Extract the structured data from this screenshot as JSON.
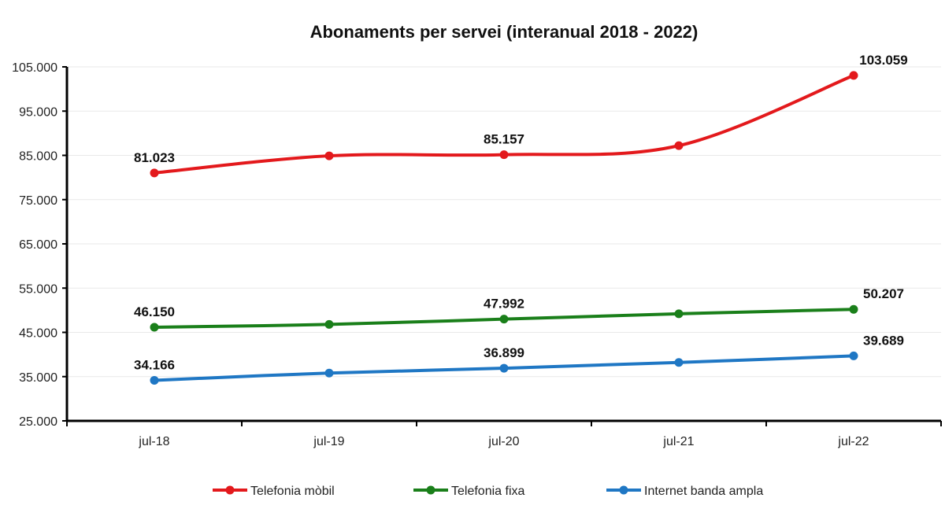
{
  "chart_data": {
    "type": "line",
    "title": "Abonaments per servei (interanual 2018 - 2022)",
    "xlabel": "",
    "ylabel": "",
    "categories": [
      "jul-18",
      "jul-19",
      "jul-20",
      "jul-21",
      "jul-22"
    ],
    "ylim": [
      25000,
      105000
    ],
    "yticks": [
      25000,
      35000,
      45000,
      55000,
      65000,
      75000,
      85000,
      95000,
      105000
    ],
    "ytick_labels": [
      "25.000",
      "35.000",
      "45.000",
      "55.000",
      "65.000",
      "75.000",
      "85.000",
      "95.000",
      "105.000"
    ],
    "grid": "horizontal",
    "legend_position": "bottom",
    "series": [
      {
        "name": "Telefonia mòbil",
        "color": "#e3191c",
        "values": [
          81023,
          84900,
          85157,
          87200,
          103059
        ],
        "labels": [
          "81.023",
          "",
          "85.157",
          "",
          "103.059"
        ]
      },
      {
        "name": "Telefonia fixa",
        "color": "#1a7f1a",
        "values": [
          46150,
          46800,
          47992,
          49200,
          50207
        ],
        "labels": [
          "46.150",
          "",
          "47.992",
          "",
          "50.207"
        ]
      },
      {
        "name": "Internet banda ampla",
        "color": "#1f77c4",
        "values": [
          34166,
          35800,
          36899,
          38200,
          39689
        ],
        "labels": [
          "34.166",
          "",
          "36.899",
          "",
          "39.689"
        ]
      }
    ]
  }
}
